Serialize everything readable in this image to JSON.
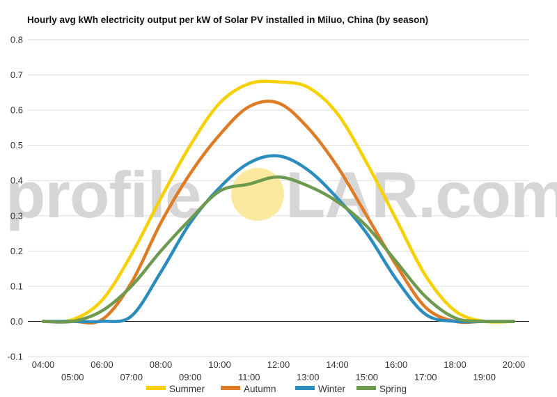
{
  "chart_data": {
    "type": "line",
    "title": "Hourly avg kWh electricity output per kW of Solar PV installed in Miluo, China (by season)",
    "xlabel": "",
    "ylabel": "",
    "x": [
      "04:00",
      "05:00",
      "06:00",
      "07:00",
      "08:00",
      "09:00",
      "10:00",
      "11:00",
      "12:00",
      "13:00",
      "14:00",
      "15:00",
      "16:00",
      "17:00",
      "18:00",
      "19:00",
      "20:00"
    ],
    "ylim": [
      -0.1,
      0.8
    ],
    "yticks": [
      "-0.1",
      "0.0",
      "0.1",
      "0.2",
      "0.3",
      "0.4",
      "0.5",
      "0.6",
      "0.7",
      "0.8"
    ],
    "grid": true,
    "legend_position": "bottom",
    "series": [
      {
        "name": "Summer",
        "color": "#f7d000",
        "values": [
          0.0,
          0.005,
          0.06,
          0.19,
          0.35,
          0.5,
          0.62,
          0.675,
          0.68,
          0.665,
          0.59,
          0.45,
          0.29,
          0.13,
          0.03,
          0.0,
          0.0
        ]
      },
      {
        "name": "Autumn",
        "color": "#e07b25",
        "values": [
          0.0,
          0.0,
          0.005,
          0.11,
          0.28,
          0.42,
          0.53,
          0.61,
          0.62,
          0.55,
          0.44,
          0.3,
          0.16,
          0.04,
          0.0,
          0.0,
          0.0
        ]
      },
      {
        "name": "Winter",
        "color": "#2b8cbe",
        "values": [
          0.0,
          0.0,
          0.0,
          0.015,
          0.14,
          0.28,
          0.38,
          0.45,
          0.47,
          0.43,
          0.35,
          0.25,
          0.12,
          0.02,
          0.0,
          0.0,
          0.0
        ]
      },
      {
        "name": "Spring",
        "color": "#6d9a4f",
        "values": [
          0.0,
          0.0,
          0.03,
          0.1,
          0.2,
          0.29,
          0.37,
          0.39,
          0.41,
          0.385,
          0.34,
          0.27,
          0.17,
          0.07,
          0.01,
          0.0,
          0.0
        ]
      }
    ]
  },
  "watermark": {
    "text_left": "profile",
    "text_right": "LAR.com",
    "sun_color": "#fbe9a0"
  }
}
